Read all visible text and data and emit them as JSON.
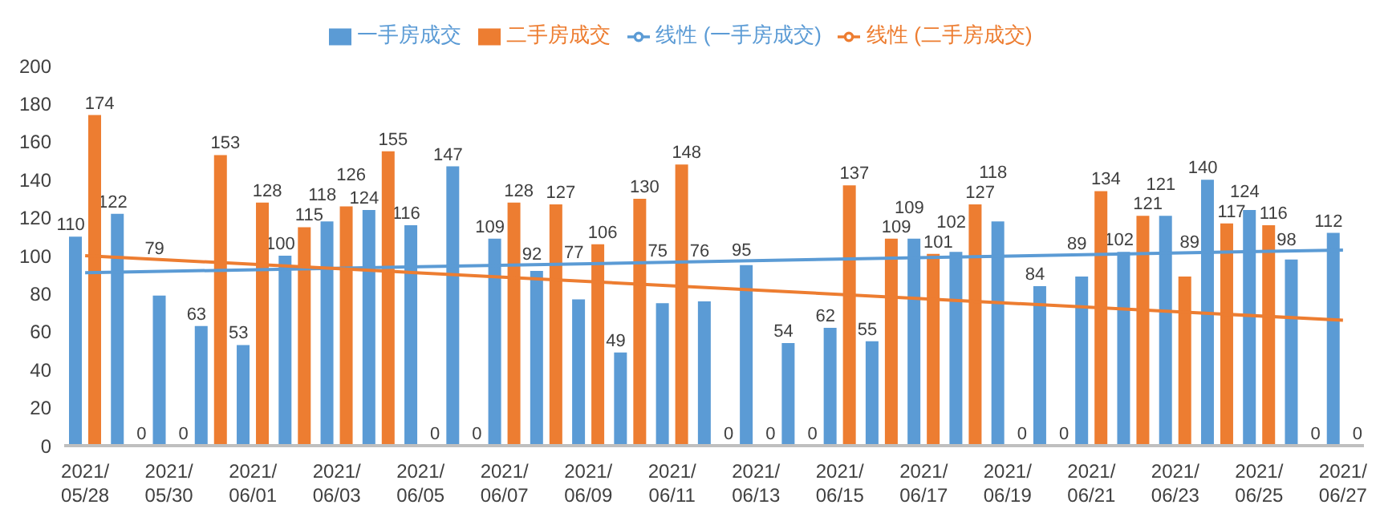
{
  "chart_data": {
    "type": "bar",
    "categories": [
      "2021/05/28",
      null,
      "2021/05/30",
      null,
      "2021/06/01",
      null,
      "2021/06/03",
      null,
      "2021/06/05",
      null,
      "2021/06/07",
      null,
      "2021/06/09",
      null,
      "2021/06/11",
      null,
      "2021/06/13",
      null,
      "2021/06/15",
      null,
      "2021/06/17",
      null,
      "2021/06/19",
      null,
      "2021/06/21",
      null,
      "2021/06/23",
      null,
      "2021/06/25",
      null,
      "2021/06/27"
    ],
    "series": [
      {
        "name": "一手房成交",
        "color": "#5b9bd5",
        "values": [
          110,
          122,
          79,
          63,
          53,
          100,
          118,
          124,
          116,
          147,
          109,
          92,
          77,
          49,
          75,
          76,
          95,
          54,
          62,
          55,
          109,
          102,
          118,
          84,
          89,
          102,
          121,
          140,
          124,
          98,
          112
        ],
        "value_labels": [
          "110",
          "122",
          "79",
          "63",
          "53",
          "100",
          "118",
          "124",
          "116",
          "147",
          "109",
          "92",
          "77",
          "49",
          "75",
          "76",
          "95",
          "54",
          "62",
          "55",
          "109",
          "102",
          "118",
          "84",
          "89",
          "102",
          "121",
          "140",
          "124",
          "98",
          "112"
        ]
      },
      {
        "name": "二手房成交",
        "color": "#ed7d31",
        "values": [
          174,
          0,
          0,
          153,
          128,
          115,
          126,
          155,
          0,
          0,
          128,
          127,
          106,
          130,
          148,
          0,
          0,
          0,
          137,
          109,
          101,
          127,
          0,
          0,
          134,
          121,
          89,
          117,
          116,
          0,
          0
        ],
        "value_labels": [
          "174",
          "0",
          "0",
          "153",
          "128",
          "115",
          "126",
          "155",
          "0",
          "0",
          "128",
          "127",
          "106",
          "130",
          "148",
          "0",
          "0",
          "0",
          "137",
          "109",
          "101",
          "127",
          "0",
          "0",
          "134",
          "121",
          "89",
          "117",
          "116",
          "0",
          "0"
        ]
      },
      {
        "name": "线性 (一手房成交)",
        "type": "line",
        "color": "#5b9bd5",
        "values": [
          91,
          null,
          null,
          null,
          null,
          null,
          null,
          null,
          null,
          null,
          null,
          null,
          null,
          null,
          null,
          null,
          null,
          null,
          null,
          null,
          null,
          null,
          null,
          null,
          null,
          null,
          null,
          null,
          null,
          null,
          103
        ]
      },
      {
        "name": "线性 (二手房成交)",
        "type": "line",
        "color": "#ed7d31",
        "values": [
          100,
          null,
          null,
          null,
          null,
          null,
          null,
          null,
          null,
          null,
          null,
          null,
          null,
          null,
          null,
          null,
          null,
          null,
          null,
          null,
          null,
          null,
          null,
          null,
          null,
          null,
          null,
          null,
          null,
          null,
          66
        ]
      }
    ],
    "ylim": [
      0,
      200
    ],
    "yticks": [
      0,
      20,
      40,
      60,
      80,
      100,
      120,
      140,
      160,
      180,
      200
    ],
    "legend": "top"
  }
}
